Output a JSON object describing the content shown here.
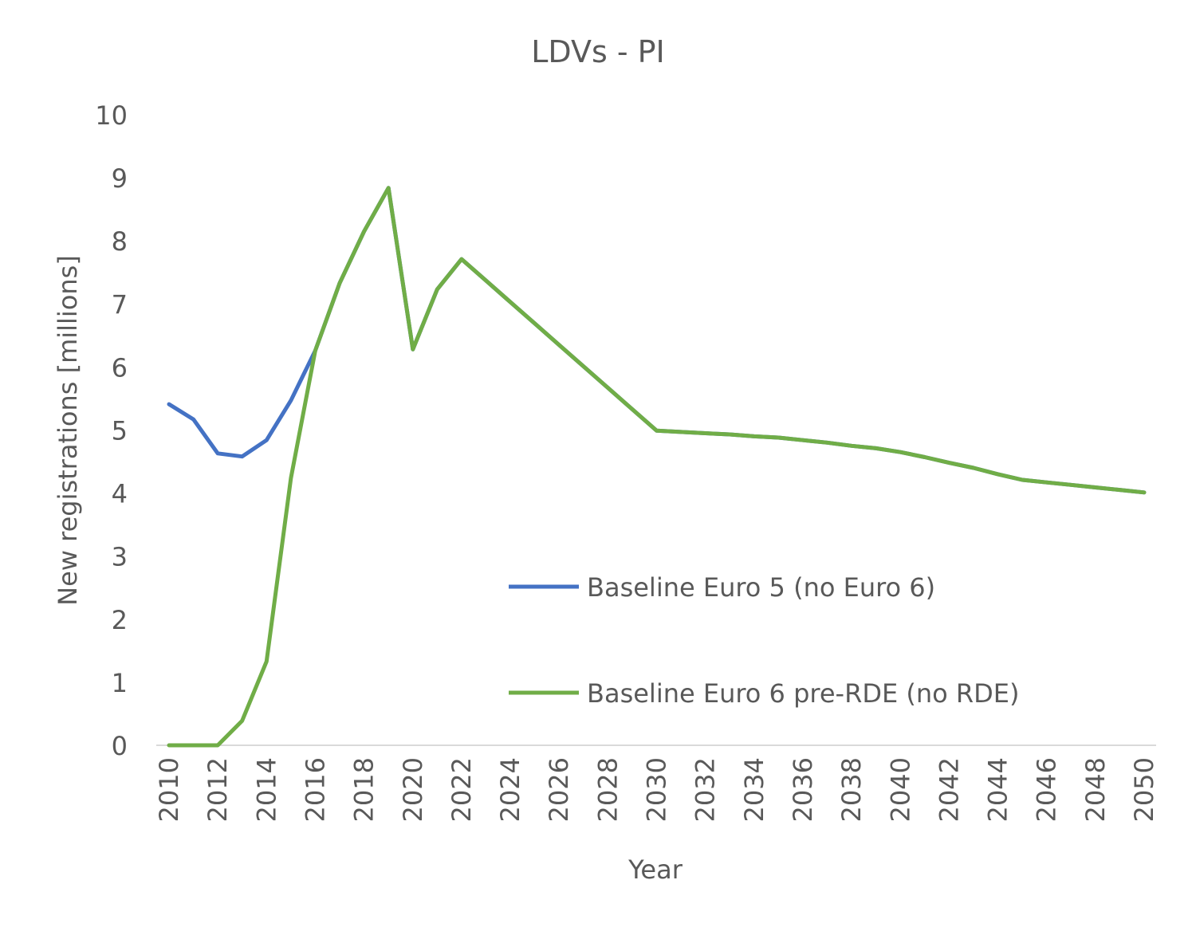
{
  "chart_data": {
    "type": "line",
    "title": "LDVs - PI",
    "xlabel": "Year",
    "ylabel": "New registrations [millions]",
    "ylim": [
      0,
      10
    ],
    "yticks": [
      "0",
      "1",
      "2",
      "3",
      "4",
      "5",
      "6",
      "7",
      "8",
      "9",
      "10"
    ],
    "xlim": [
      2010,
      2050
    ],
    "xticks": [
      "2010",
      "2012",
      "2014",
      "2016",
      "2018",
      "2020",
      "2022",
      "2024",
      "2026",
      "2028",
      "2030",
      "2032",
      "2034",
      "2036",
      "2038",
      "2040",
      "2042",
      "2044",
      "2046",
      "2048",
      "2050"
    ],
    "grid": false,
    "legend_position": "center-right",
    "x": [
      2010,
      2011,
      2012,
      2013,
      2014,
      2015,
      2016,
      2017,
      2018,
      2019,
      2020,
      2021,
      2022,
      2023,
      2024,
      2025,
      2026,
      2027,
      2028,
      2029,
      2030,
      2031,
      2032,
      2033,
      2034,
      2035,
      2036,
      2037,
      2038,
      2039,
      2040,
      2041,
      2042,
      2043,
      2044,
      2045,
      2046,
      2047,
      2048,
      2049,
      2050
    ],
    "series": [
      {
        "name": "Baseline Euro 5 (no Euro 6)",
        "color": "#4472C4",
        "values": [
          5.41,
          5.17,
          4.63,
          4.58,
          4.84,
          5.47,
          6.26,
          7.33,
          8.15,
          8.84,
          6.28,
          7.23,
          7.71,
          7.37,
          7.03,
          6.69,
          6.35,
          6.01,
          5.67,
          5.33,
          4.99,
          4.97,
          4.95,
          4.93,
          4.9,
          4.88,
          4.84,
          4.8,
          4.75,
          4.71,
          4.65,
          4.57,
          4.48,
          4.4,
          4.3,
          4.21,
          4.17,
          4.13,
          4.09,
          4.05,
          4.01
        ]
      },
      {
        "name": "Baseline Euro 6 pre-RDE (no RDE)",
        "color": "#70AD47",
        "values": [
          0,
          0,
          0,
          0.39,
          1.33,
          4.24,
          6.26,
          7.33,
          8.15,
          8.84,
          6.28,
          7.23,
          7.71,
          7.37,
          7.03,
          6.69,
          6.35,
          6.01,
          5.67,
          5.33,
          4.99,
          4.97,
          4.95,
          4.93,
          4.9,
          4.88,
          4.84,
          4.8,
          4.75,
          4.71,
          4.65,
          4.57,
          4.48,
          4.4,
          4.3,
          4.21,
          4.17,
          4.13,
          4.09,
          4.05,
          4.01
        ]
      }
    ]
  }
}
